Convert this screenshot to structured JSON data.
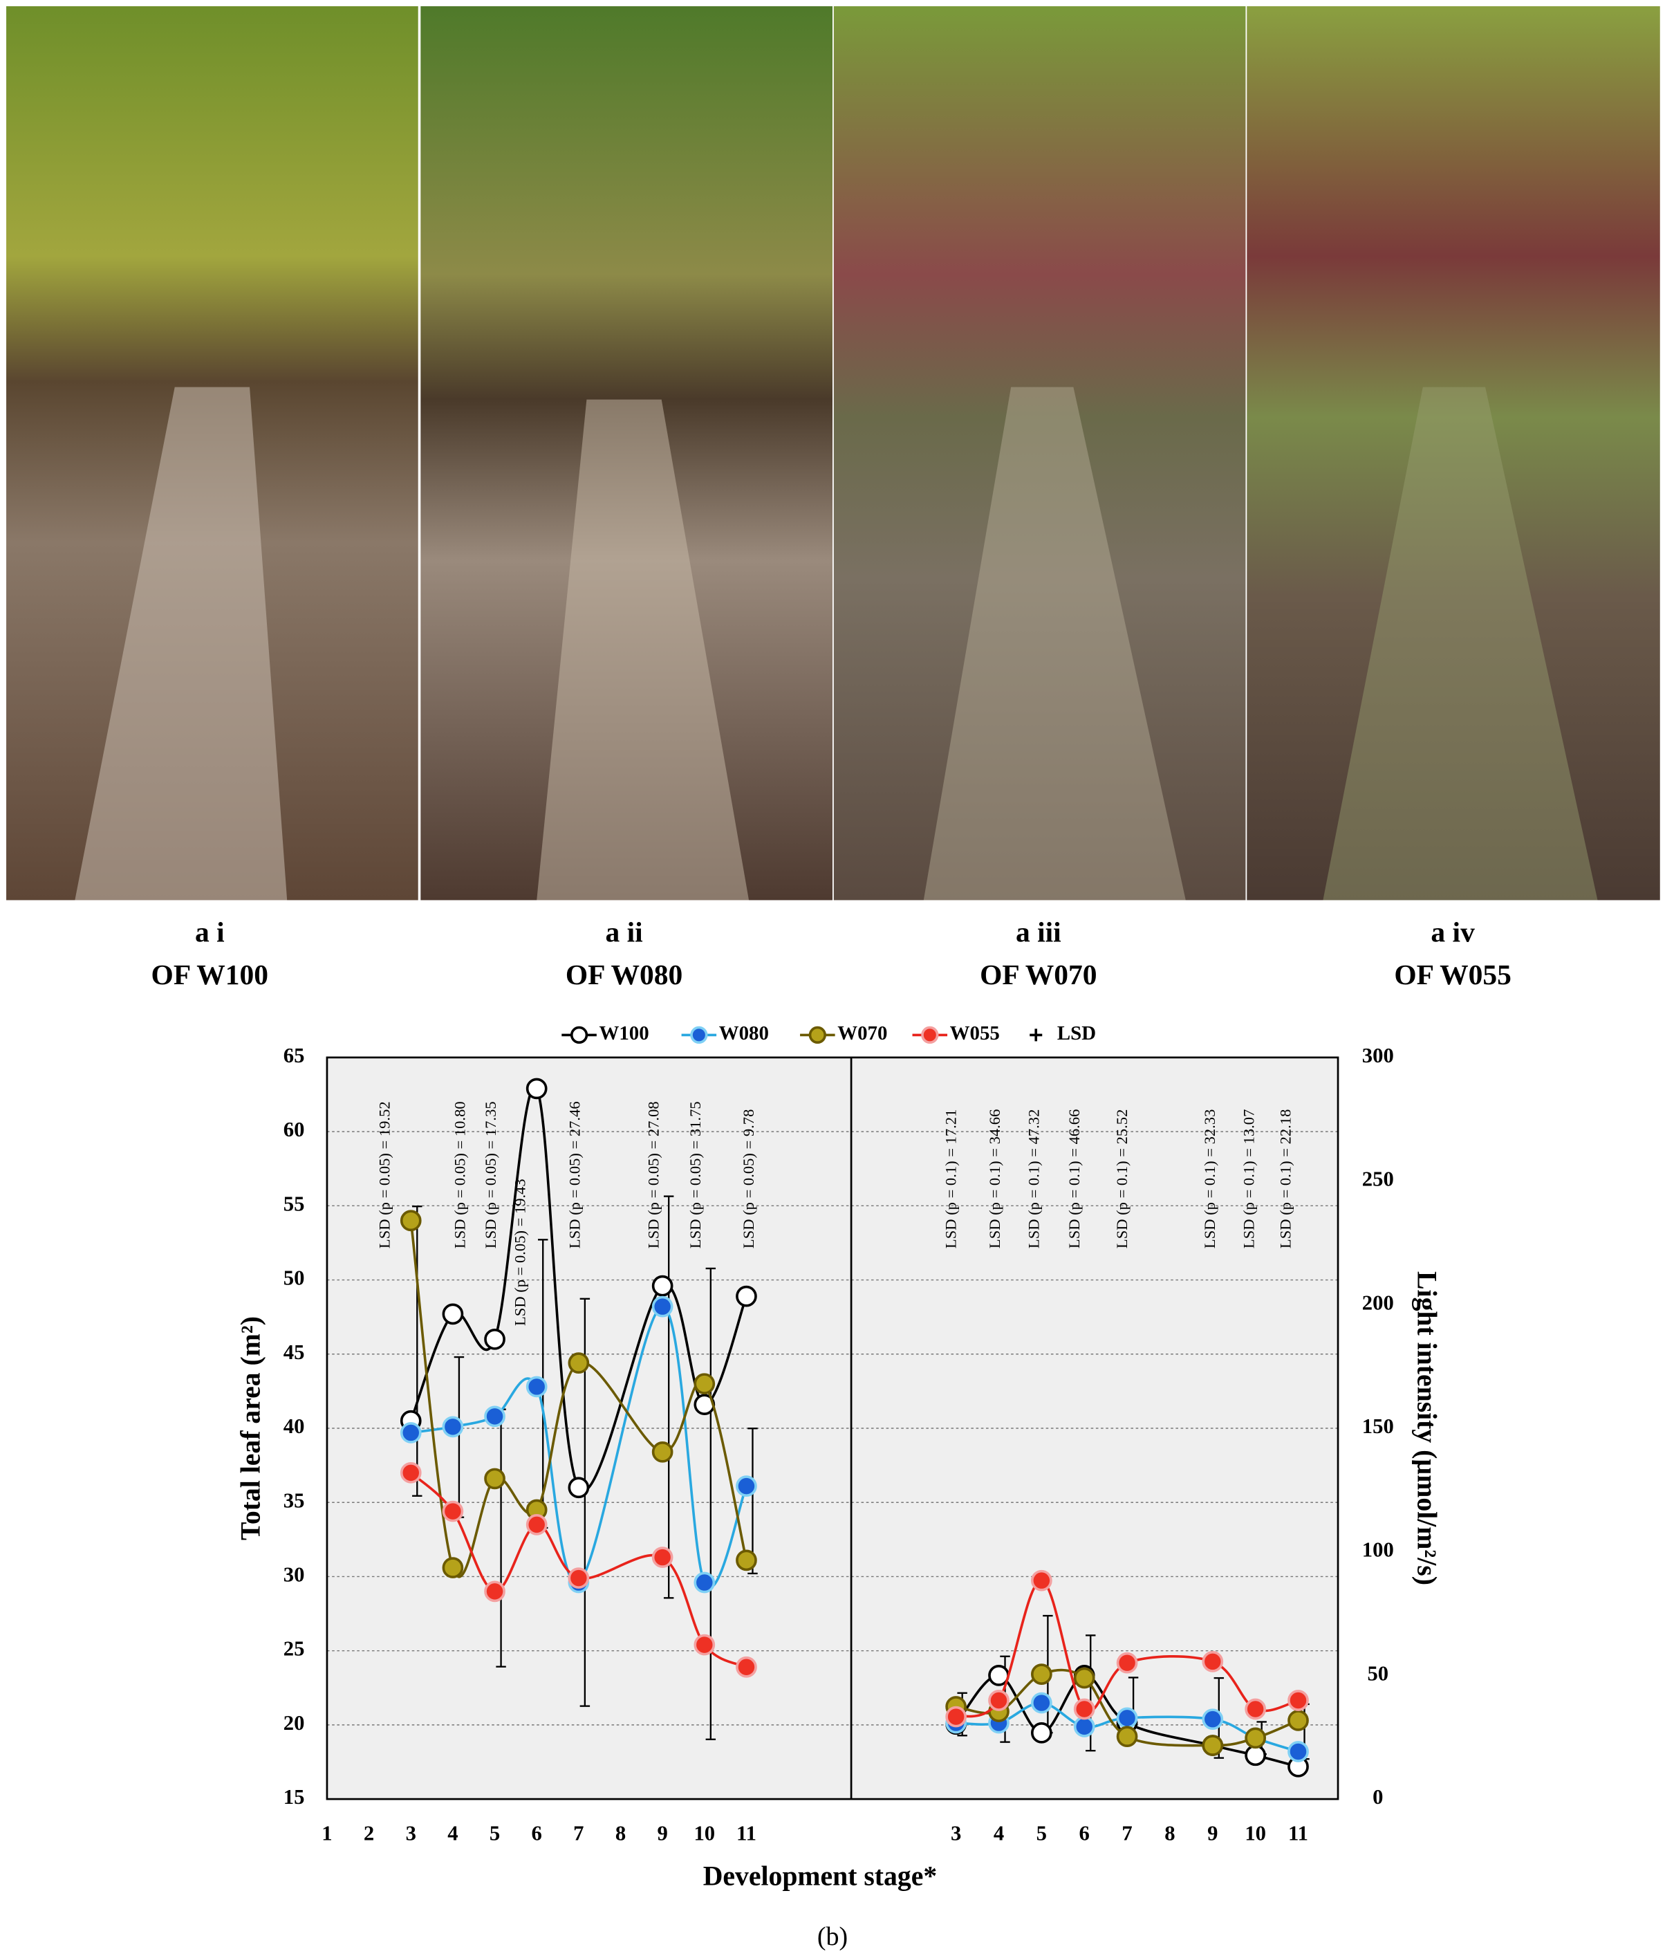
{
  "photos": [
    {
      "label": "a i",
      "caption": "OF W100"
    },
    {
      "label": "a ii",
      "caption": "OF W080"
    },
    {
      "label": "a iii",
      "caption": "OF W070"
    },
    {
      "label": "a iv",
      "caption": "OF W055"
    }
  ],
  "chart_data": {
    "type": "line",
    "series": [
      {
        "name": "W100",
        "color": "#000000",
        "marker_fill": "#ffffff",
        "marker_stroke": "#000000"
      },
      {
        "name": "W080",
        "color": "#29a8e0",
        "marker_fill": "#1a5fd6",
        "marker_stroke": "#7fd0f5"
      },
      {
        "name": "W070",
        "color": "#6b5a00",
        "marker_fill": "#b5a21a",
        "marker_stroke": "#6b5a00"
      },
      {
        "name": "W055",
        "color": "#e8231b",
        "marker_fill": "#ee3124",
        "marker_stroke": "#f4a0a0"
      }
    ],
    "lsd_legend": "LSD",
    "x_label": "Development stage*",
    "caption": "(b)",
    "panels": [
      {
        "side": "left",
        "y_label": "Total leaf area (m²)",
        "x": [
          3,
          4,
          5,
          6,
          7,
          9,
          10,
          11
        ],
        "xlim": [
          1,
          13.5
        ],
        "xticks": [
          1,
          2,
          3,
          4,
          5,
          6,
          7,
          8,
          9,
          10,
          11
        ],
        "ylim": [
          15,
          65
        ],
        "yticks": [
          15,
          20,
          25,
          30,
          35,
          40,
          45,
          50,
          55,
          60,
          65
        ],
        "grid": true,
        "values": [
          [
            40.5,
            47.7,
            46.0,
            62.9,
            36.0,
            49.6,
            41.6,
            48.9
          ],
          [
            39.7,
            40.1,
            40.8,
            42.8,
            29.6,
            48.2,
            29.6,
            36.1
          ],
          [
            54.0,
            30.6,
            36.6,
            34.5,
            44.4,
            38.4,
            43.0,
            31.1
          ],
          [
            37.0,
            34.4,
            29.0,
            33.5,
            29.9,
            31.3,
            25.4,
            23.9
          ]
        ],
        "lsd_center": [
          45.2,
          39.4,
          32.6,
          43.0,
          35.0,
          42.1,
          34.9,
          35.1
        ],
        "lsd": [
          19.52,
          10.8,
          17.35,
          19.43,
          27.46,
          27.08,
          31.75,
          9.78
        ],
        "lsd_labels": [
          "LSD (p = 0.05) = 19.52",
          "LSD (p = 0.05) = 10.80",
          "LSD (p = 0.05) = 17.35",
          "LSD (p = 0.05) = 19.43",
          "LSD (p = 0.05) = 27.46",
          "LSD (p = 0.05) = 27.08",
          "LSD (p = 0.05) = 31.75",
          "LSD (p = 0.05) = 9.78"
        ]
      },
      {
        "side": "right",
        "y_label": "Light intensity (µmol/m²/s)",
        "x": [
          3,
          4,
          5,
          6,
          7,
          9,
          10,
          11
        ],
        "xlim": [
          0.55,
          11.93
        ],
        "xticks": [
          3,
          4,
          5,
          6,
          7,
          8,
          9,
          10,
          11
        ],
        "ylim": [
          0,
          300
        ],
        "yticks": [
          0,
          50,
          100,
          150,
          200,
          250,
          300
        ],
        "grid": false,
        "values": [
          [
            30.3,
            50.0,
            26.8,
            50.0,
            30.8,
            21.7,
            17.7,
            13.1
          ],
          [
            30.8,
            30.8,
            38.9,
            29.3,
            32.8,
            32.3,
            24.7,
            19.2
          ],
          [
            37.4,
            35.4,
            50.5,
            49.0,
            25.3,
            21.7,
            24.7,
            31.8
          ],
          [
            33.3,
            39.9,
            88.4,
            36.4,
            55.1,
            55.6,
            36.4,
            39.9
          ]
        ],
        "lsd_center": [
          34.3,
          40.4,
          50.5,
          42.9,
          36.4,
          32.8,
          24.7,
          27.3
        ],
        "lsd": [
          17.21,
          34.66,
          47.32,
          46.66,
          25.52,
          32.33,
          13.07,
          22.18
        ],
        "lsd_labels": [
          "LSD (p = 0.1) = 17.21",
          "LSD (p = 0.1) = 34.66",
          "LSD (p = 0.1) = 47.32",
          "LSD (p = 0.1) = 46.66",
          "LSD (p = 0.1) = 25.52",
          "LSD (p = 0.1) = 32.33",
          "LSD (p = 0.1) = 13.07",
          "LSD (p = 0.1) = 22.18"
        ]
      }
    ]
  }
}
